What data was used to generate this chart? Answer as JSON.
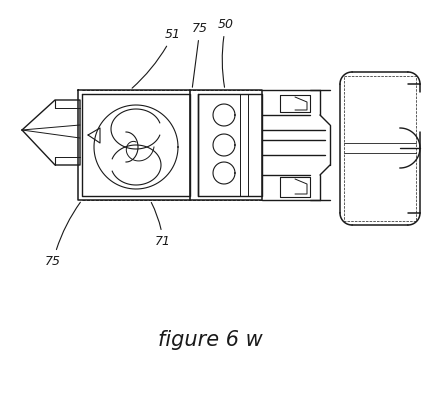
{
  "figure_label": "figure 6 w",
  "bg_color": "#ffffff",
  "line_color": "#1a1a1a",
  "lw": 1.0,
  "fig_w": 4.38,
  "fig_h": 4.03,
  "dpi": 100
}
